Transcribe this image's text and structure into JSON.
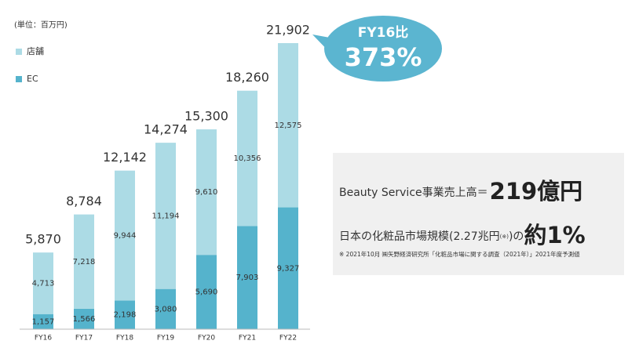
{
  "chart_data": {
    "type": "stacked_bar",
    "unit_note": "(単位：百万円)",
    "categories": [
      "FY16",
      "FY17",
      "FY18",
      "FY19",
      "FY20",
      "FY21",
      "FY22"
    ],
    "series": [
      {
        "name": "EC",
        "color": "#55b3cc",
        "values": [
          1157,
          1566,
          2198,
          3080,
          5690,
          7903,
          9327
        ],
        "value_labels": [
          "1,157",
          "1,566",
          "2,198",
          "3,080",
          "5,690",
          "7,903",
          "9,327"
        ]
      },
      {
        "name": "店舗",
        "color": "#acdbe5",
        "values": [
          4713,
          7218,
          9944,
          11194,
          9610,
          10356,
          12575
        ],
        "value_labels": [
          "4,713",
          "7,218",
          "9,944",
          "11,194",
          "9,610",
          "10,356",
          "12,575"
        ]
      }
    ],
    "totals": [
      5870,
      8784,
      12142,
      14274,
      15300,
      18260,
      21902
    ],
    "total_labels": [
      "5,870",
      "8,784",
      "12,142",
      "14,274",
      "15,300",
      "18,260",
      "21,902"
    ],
    "callout": {
      "line1": "FY16比",
      "line2": "373%",
      "color": "#5bb5d0"
    },
    "info_box": {
      "line1": "Beauty Service事業売上高＝",
      "line1_value": "219億円",
      "line2": "日本の化粧品市場規模(2.27兆円",
      "line2_note": "(※)",
      "line2_end": ")の",
      "line2_value": "約1%",
      "footnote": "※ 2021年10月 ㈱矢野経済研究所「化粧品市場に関する調査（2021年）」2021年度予測値"
    }
  }
}
